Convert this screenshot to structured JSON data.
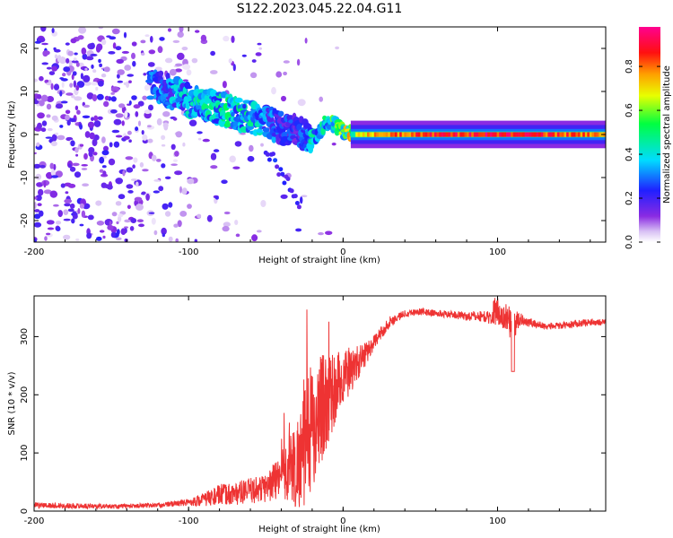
{
  "title": "S122.2023.045.22.04.G11",
  "chart_data": [
    {
      "type": "heatmap",
      "title": "S122.2023.045.22.04.G11",
      "xlabel": "Height of straight line (km)",
      "ylabel": "Frequency (Hz)",
      "xlim": [
        -200,
        170
      ],
      "ylim": [
        -25,
        25
      ],
      "xticks": [
        -200,
        -100,
        0,
        100
      ],
      "xtick_labels": [
        "-200",
        "-100",
        "0",
        "100"
      ],
      "yticks": [
        -20,
        -10,
        0,
        10,
        20
      ],
      "ytick_labels": [
        "-20",
        "-10",
        "0",
        "10",
        "20"
      ],
      "colorbar": {
        "label": "Normalized spectral amplitude",
        "range": [
          0,
          0.98
        ],
        "ticks": [
          0.0,
          0.2,
          0.4,
          0.6,
          0.8
        ],
        "tick_labels": [
          "0.0",
          "0.2",
          "0.4",
          "0.6",
          "0.8"
        ],
        "colormap": "rainbow (white-purple-blue-cyan-green-yellow-orange-red-magenta)"
      },
      "ridge": {
        "x": [
          -120,
          -100,
          -80,
          -60,
          -50,
          -40,
          -30,
          -25,
          -20,
          -10,
          0,
          10,
          50,
          100,
          170
        ],
        "y": [
          11,
          8,
          6,
          4,
          3,
          1.5,
          1,
          0,
          -1,
          3,
          1,
          0,
          0,
          0,
          0
        ],
        "amplitude": [
          0.3,
          0.4,
          0.45,
          0.45,
          0.35,
          0.25,
          0.25,
          0.3,
          0.4,
          0.5,
          0.6,
          0.75,
          0.92,
          0.95,
          0.85
        ]
      }
    },
    {
      "type": "line",
      "xlabel": "Height of straight line (km)",
      "ylabel": "SNR (10 * v/v)",
      "xlim": [
        -200,
        170
      ],
      "ylim": [
        0,
        370
      ],
      "xticks": [
        -200,
        -100,
        0,
        100
      ],
      "xtick_labels": [
        "-200",
        "-100",
        "0",
        "100"
      ],
      "yticks": [
        0,
        100,
        200,
        300
      ],
      "ytick_labels": [
        "0",
        "100",
        "200",
        "300"
      ],
      "color": "#ee3333",
      "envelope": {
        "x": [
          -200,
          -150,
          -120,
          -100,
          -90,
          -80,
          -70,
          -60,
          -50,
          -40,
          -30,
          -25,
          -20,
          -10,
          0,
          10,
          20,
          30,
          40,
          50,
          60,
          70,
          80,
          90,
          100,
          105,
          110,
          115,
          120,
          130,
          140,
          150,
          160,
          170
        ],
        "mean": [
          10,
          8,
          10,
          15,
          20,
          28,
          30,
          35,
          40,
          60,
          80,
          110,
          150,
          190,
          230,
          255,
          290,
          325,
          340,
          343,
          340,
          338,
          335,
          335,
          330,
          335,
          320,
          330,
          325,
          318,
          318,
          322,
          325,
          325
        ],
        "noise": [
          5,
          4,
          4,
          6,
          12,
          18,
          20,
          22,
          25,
          45,
          80,
          100,
          110,
          80,
          50,
          30,
          12,
          10,
          6,
          6,
          6,
          6,
          8,
          10,
          12,
          25,
          30,
          10,
          8,
          6,
          6,
          6,
          6,
          6
        ]
      }
    }
  ]
}
